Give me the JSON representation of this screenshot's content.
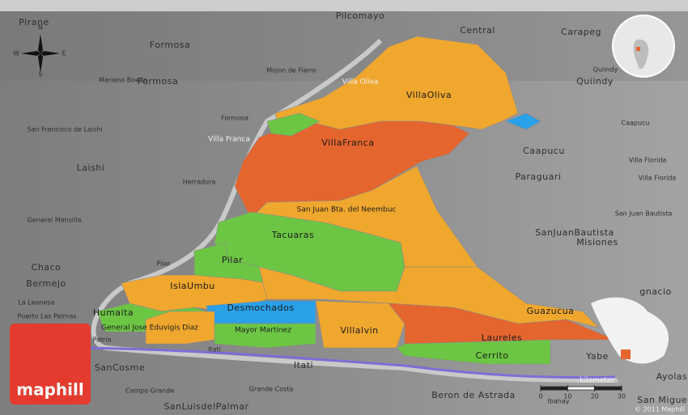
{
  "map": {
    "places": [
      "Pilcomayo",
      "Central",
      "Pirane",
      "Formosa",
      "Formosa",
      "Carapeg",
      "Quiindy",
      "Quiindy",
      "Villa Oliva",
      "Mojon de Fierro",
      "Mariano Boedo",
      "Formosa",
      "Villa Franca",
      "San Francisco de Laishi",
      "Laishi",
      "Herradura",
      "Caapucu",
      "Caapucu",
      "Paraguari",
      "Villa Florida",
      "Villa Florida",
      "San Juan Bautista",
      "SanJuanBautista",
      "Misiones",
      "General Mansilla",
      "Chaco",
      "Bermejo",
      "Pilar",
      "La Leonesa",
      "Puerto Las Palmas",
      "Patria",
      "Itati",
      "Itati",
      "SanCosme",
      "Campo Grande",
      "Grande Costa",
      "Beron de Astrada",
      "Ibahay",
      "SanLuisdelPalmar",
      "Ayolas",
      "San Miguel",
      "Yabe",
      "gnacio"
    ],
    "districts": [
      "VillaOliva",
      "VillaFranca",
      "San Juan Bta. del Neembuc",
      "Tacuaras",
      "Pilar",
      "IslaUmbu",
      "Humaita",
      "Desmochados",
      "General Jose Eduvigis Diaz",
      "Mayor Martinez",
      "Villalvin",
      "Guazucua",
      "Laureles",
      "Cerrito"
    ]
  },
  "compass": {
    "n": "N",
    "s": "S",
    "w": "W",
    "e": "E"
  },
  "scale": {
    "unit": "kilometers",
    "ticks": [
      0,
      10,
      20,
      30
    ]
  },
  "copyright": "© 2011 Maphill",
  "logo": "maphill"
}
